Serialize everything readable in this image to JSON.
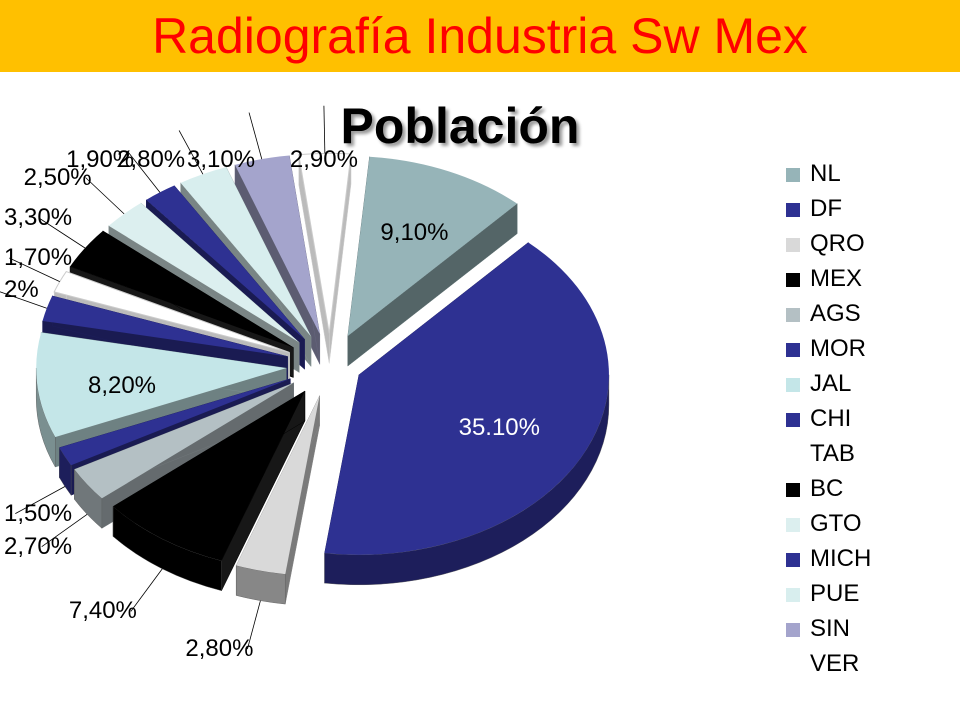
{
  "banner": {
    "title": "Radiografía Industria Sw Mex"
  },
  "chart_data": {
    "type": "pie",
    "title": "Población",
    "three_d": true,
    "exploded": true,
    "legend_position": "right",
    "slices": [
      {
        "name": "NL",
        "label": "9,10%",
        "value": 9.1,
        "color": "#96b4b8"
      },
      {
        "name": "DF",
        "label": "35.10%",
        "value": 35.1,
        "color": "#2e3192"
      },
      {
        "name": "QRO",
        "label": "2,80%",
        "value": 2.8,
        "color": "#d9d9d9"
      },
      {
        "name": "MEX",
        "label": "7,40%",
        "value": 7.4,
        "color": "#000000"
      },
      {
        "name": "AGS",
        "label": "2,70%",
        "value": 2.7,
        "color": "#b4c0c4"
      },
      {
        "name": "MOR",
        "label": "1,50%",
        "value": 1.5,
        "color": "#2e3192"
      },
      {
        "name": "JAL",
        "label": "8,20%",
        "value": 8.2,
        "color": "#c4e6e8"
      },
      {
        "name": "CHI",
        "label": "2%",
        "value": 2.0,
        "color": "#2e3192"
      },
      {
        "name": "TAB",
        "label": "1,70%",
        "value": 1.7,
        "color": "#ffffff"
      },
      {
        "name": "BC",
        "label": "3,30%",
        "value": 3.3,
        "color": "#000000"
      },
      {
        "name": "GTO",
        "label": "2,50%",
        "value": 2.5,
        "color": "#dcefef"
      },
      {
        "name": "MICH",
        "label": "1,90%",
        "value": 1.9,
        "color": "#2e3192"
      },
      {
        "name": "PUE",
        "label": "2,80%",
        "value": 2.8,
        "color": "#d8eeee"
      },
      {
        "name": "SIN",
        "label": "3,10%",
        "value": 3.1,
        "color": "#a4a4cc"
      },
      {
        "name": "VER",
        "label": "2,90%",
        "value": 2.9,
        "color": "#ffffff"
      }
    ]
  }
}
